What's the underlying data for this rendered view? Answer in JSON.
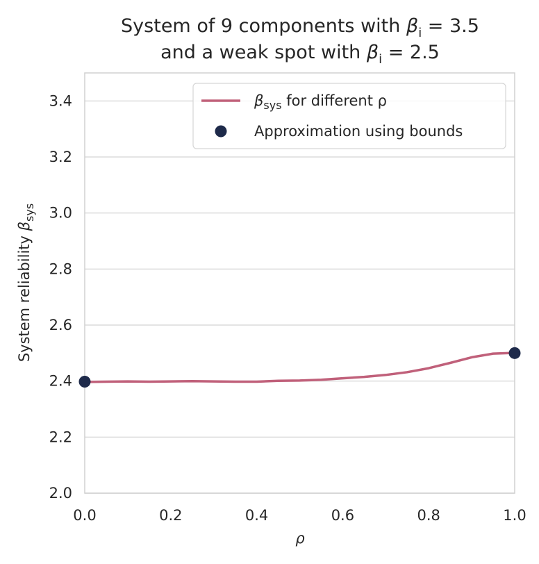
{
  "chart_data": {
    "type": "line",
    "title_line1": "System of 9 components with ",
    "title_line1_math": "β",
    "title_line1_sub": "i",
    "title_line1_tail": " = 3.5",
    "title_line2": "and a weak spot with ",
    "title_line2_math": "β",
    "title_line2_sub": "i",
    "title_line2_tail": " = 2.5",
    "xlabel": "ρ",
    "ylabel": "System reliability ",
    "ylabel_math": "β",
    "ylabel_sub": "sys",
    "xlim": [
      0.0,
      1.0
    ],
    "ylim": [
      2.0,
      3.5
    ],
    "xticks": [
      "0.0",
      "0.2",
      "0.4",
      "0.6",
      "0.8",
      "1.0"
    ],
    "yticks": [
      "2.0",
      "2.2",
      "2.4",
      "2.6",
      "2.8",
      "3.0",
      "3.2",
      "3.4"
    ],
    "grid": true,
    "legend_position": "top-right",
    "series": [
      {
        "name": "β",
        "name_sub": "sys",
        "name_tail": " for different ρ",
        "kind": "line",
        "color": "#c0607a",
        "x": [
          0.0,
          0.05,
          0.1,
          0.15,
          0.2,
          0.25,
          0.3,
          0.35,
          0.4,
          0.45,
          0.5,
          0.55,
          0.6,
          0.65,
          0.7,
          0.75,
          0.8,
          0.85,
          0.9,
          0.95,
          0.99
        ],
        "y": [
          2.397,
          2.398,
          2.399,
          2.398,
          2.399,
          2.4,
          2.399,
          2.398,
          2.398,
          2.401,
          2.402,
          2.405,
          2.41,
          2.415,
          2.422,
          2.432,
          2.446,
          2.465,
          2.485,
          2.498,
          2.5
        ]
      },
      {
        "name": "Approximation using bounds",
        "kind": "scatter",
        "color": "#1e2a4a",
        "x": [
          0.0,
          1.0
        ],
        "y": [
          2.398,
          2.5
        ]
      }
    ]
  }
}
